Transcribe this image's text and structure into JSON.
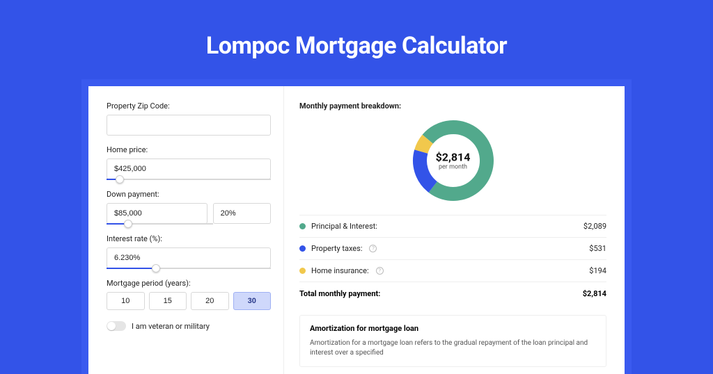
{
  "title": "Lompoc Mortgage Calculator",
  "colors": {
    "page_bg": "#3353e8",
    "card_wrap_bg": "#3a5aef",
    "slider_fill": "#3353e8"
  },
  "form": {
    "zip": {
      "label": "Property Zip Code:",
      "value": ""
    },
    "home_price": {
      "label": "Home price:",
      "value": "$425,000",
      "slider_pct": 8
    },
    "down_payment": {
      "label": "Down payment:",
      "value": "$85,000",
      "pct": "20%",
      "slider_pct": 20
    },
    "interest_rate": {
      "label": "Interest rate (%):",
      "value": "6.230%",
      "slider_pct": 30
    },
    "period": {
      "label": "Mortgage period (years):",
      "options": [
        "10",
        "15",
        "20",
        "30"
      ],
      "selected_index": 3
    },
    "veteran": {
      "label": "I am veteran or military",
      "on": false
    }
  },
  "breakdown": {
    "title": "Monthly payment breakdown:",
    "total_label": "per month",
    "total_amount": "$2,814",
    "donut": {
      "size": 120,
      "thickness": 20,
      "segments": [
        {
          "label": "Principal & Interest:",
          "amount": "$2,089",
          "color": "#52a98c",
          "pct": 74.2
        },
        {
          "label": "Property taxes:",
          "amount": "$531",
          "color": "#3353e8",
          "pct": 18.9,
          "info": true
        },
        {
          "label": "Home insurance:",
          "amount": "$194",
          "color": "#f1c84c",
          "pct": 6.9,
          "info": true
        }
      ]
    },
    "total_row": {
      "label": "Total monthly payment:",
      "amount": "$2,814"
    }
  },
  "amortization": {
    "title": "Amortization for mortgage loan",
    "text": "Amortization for a mortgage loan refers to the gradual repayment of the loan principal and interest over a specified"
  }
}
